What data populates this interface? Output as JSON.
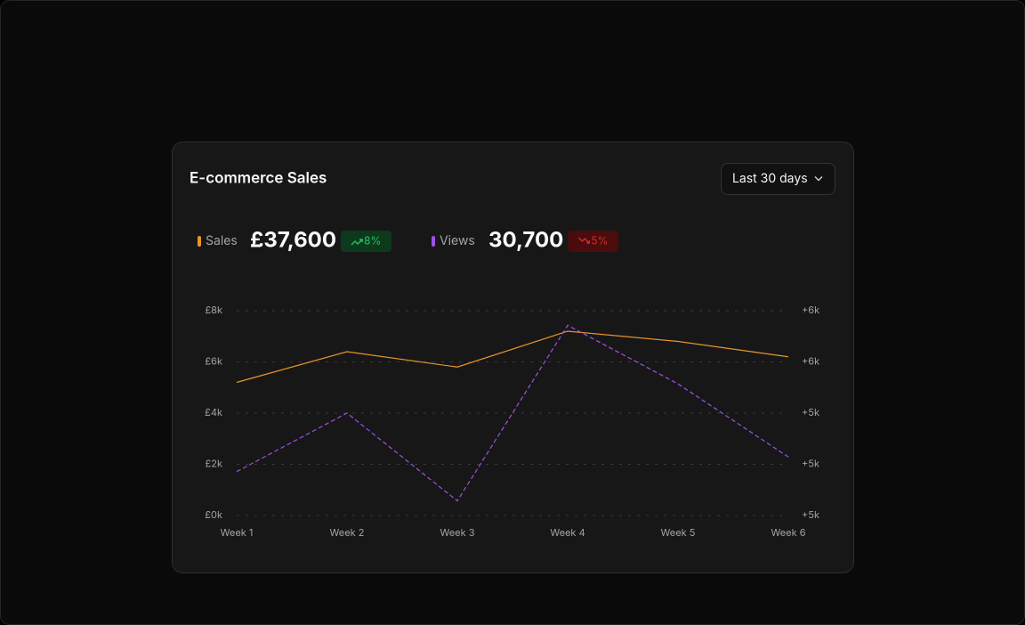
{
  "card": {
    "title": "E-commerce Sales",
    "range_button": "Last 30 days",
    "metrics": [
      {
        "name": "Sales",
        "total": "£37,600",
        "change": "8%",
        "direction": "up"
      },
      {
        "name": "Views",
        "total": "30,700",
        "change": "5%",
        "direction": "down"
      }
    ]
  },
  "chart_data": {
    "type": "line",
    "categories": [
      "Week 1",
      "Week 2",
      "Week 3",
      "Week 4",
      "Week 5",
      "Week 6"
    ],
    "series": [
      {
        "name": "Sales",
        "color": "#e8952c",
        "values": [
          5200,
          6400,
          5800,
          7200,
          6800,
          6200
        ]
      },
      {
        "name": "Views",
        "color": "#a24fe8",
        "axis": "y2",
        "dashed": true,
        "values": [
          4800,
          5200,
          4600,
          5800,
          5400,
          4900
        ]
      }
    ],
    "ylim": [
      0,
      8000
    ],
    "yticks": [
      {
        "value": 0,
        "label": "£0k"
      },
      {
        "value": 2000,
        "label": "£2k"
      },
      {
        "value": 4000,
        "label": "£4k"
      },
      {
        "value": 6000,
        "label": "£6k"
      },
      {
        "value": 8000,
        "label": "£8k"
      }
    ],
    "y2lim": [
      4500,
      5900
    ],
    "y2ticks": [
      {
        "value": 4500,
        "label": "+5k"
      },
      {
        "value": 4850,
        "label": "+5k"
      },
      {
        "value": 5200,
        "label": "+5k"
      },
      {
        "value": 5550,
        "label": "+6k"
      },
      {
        "value": 5900,
        "label": "+6k"
      }
    ],
    "grid": true
  }
}
